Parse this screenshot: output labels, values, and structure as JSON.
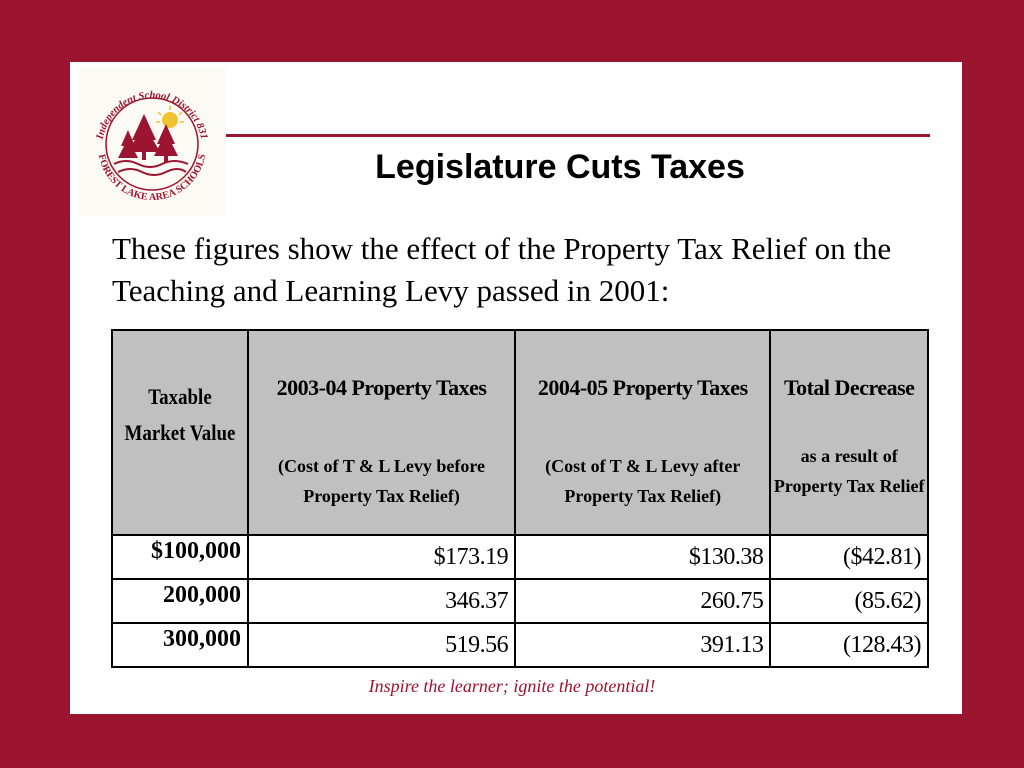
{
  "logo": {
    "top_text": "Independent School District 831",
    "bottom_text": "FOREST LAKE AREA SCHOOLS",
    "brand_color": "#9b1530"
  },
  "title": "Legislature Cuts Taxes",
  "intro": "These figures show the effect of the Property Tax Relief on the Teaching and Learning Levy passed in 2001:",
  "table": {
    "headers": {
      "col1": "Taxable Market Value",
      "col2_main": "2003-04 Property Taxes",
      "col2_sub": "(Cost of T & L  Levy before Property Tax Relief)",
      "col3_main": "2004-05 Property Taxes",
      "col3_sub": "(Cost of T & L  Levy after Property Tax Relief)",
      "col4_main": "Total Decrease",
      "col4_sub": "as a result of Property Tax Relief"
    },
    "rows": [
      {
        "value": "$100,000",
        "before": "$173.19",
        "after": "$130.38",
        "decrease": "($42.81)"
      },
      {
        "value": "200,000",
        "before": "346.37",
        "after": "260.75",
        "decrease": "(85.62)"
      },
      {
        "value": "300,000",
        "before": "519.56",
        "after": "391.13",
        "decrease": "(128.43)"
      }
    ]
  },
  "slogan": "Inspire the learner; ignite the potential!",
  "colors": {
    "background": "#9b1530",
    "slide": "#ffffff",
    "header_fill": "#c0c0c0",
    "accent": "#9b1530"
  }
}
